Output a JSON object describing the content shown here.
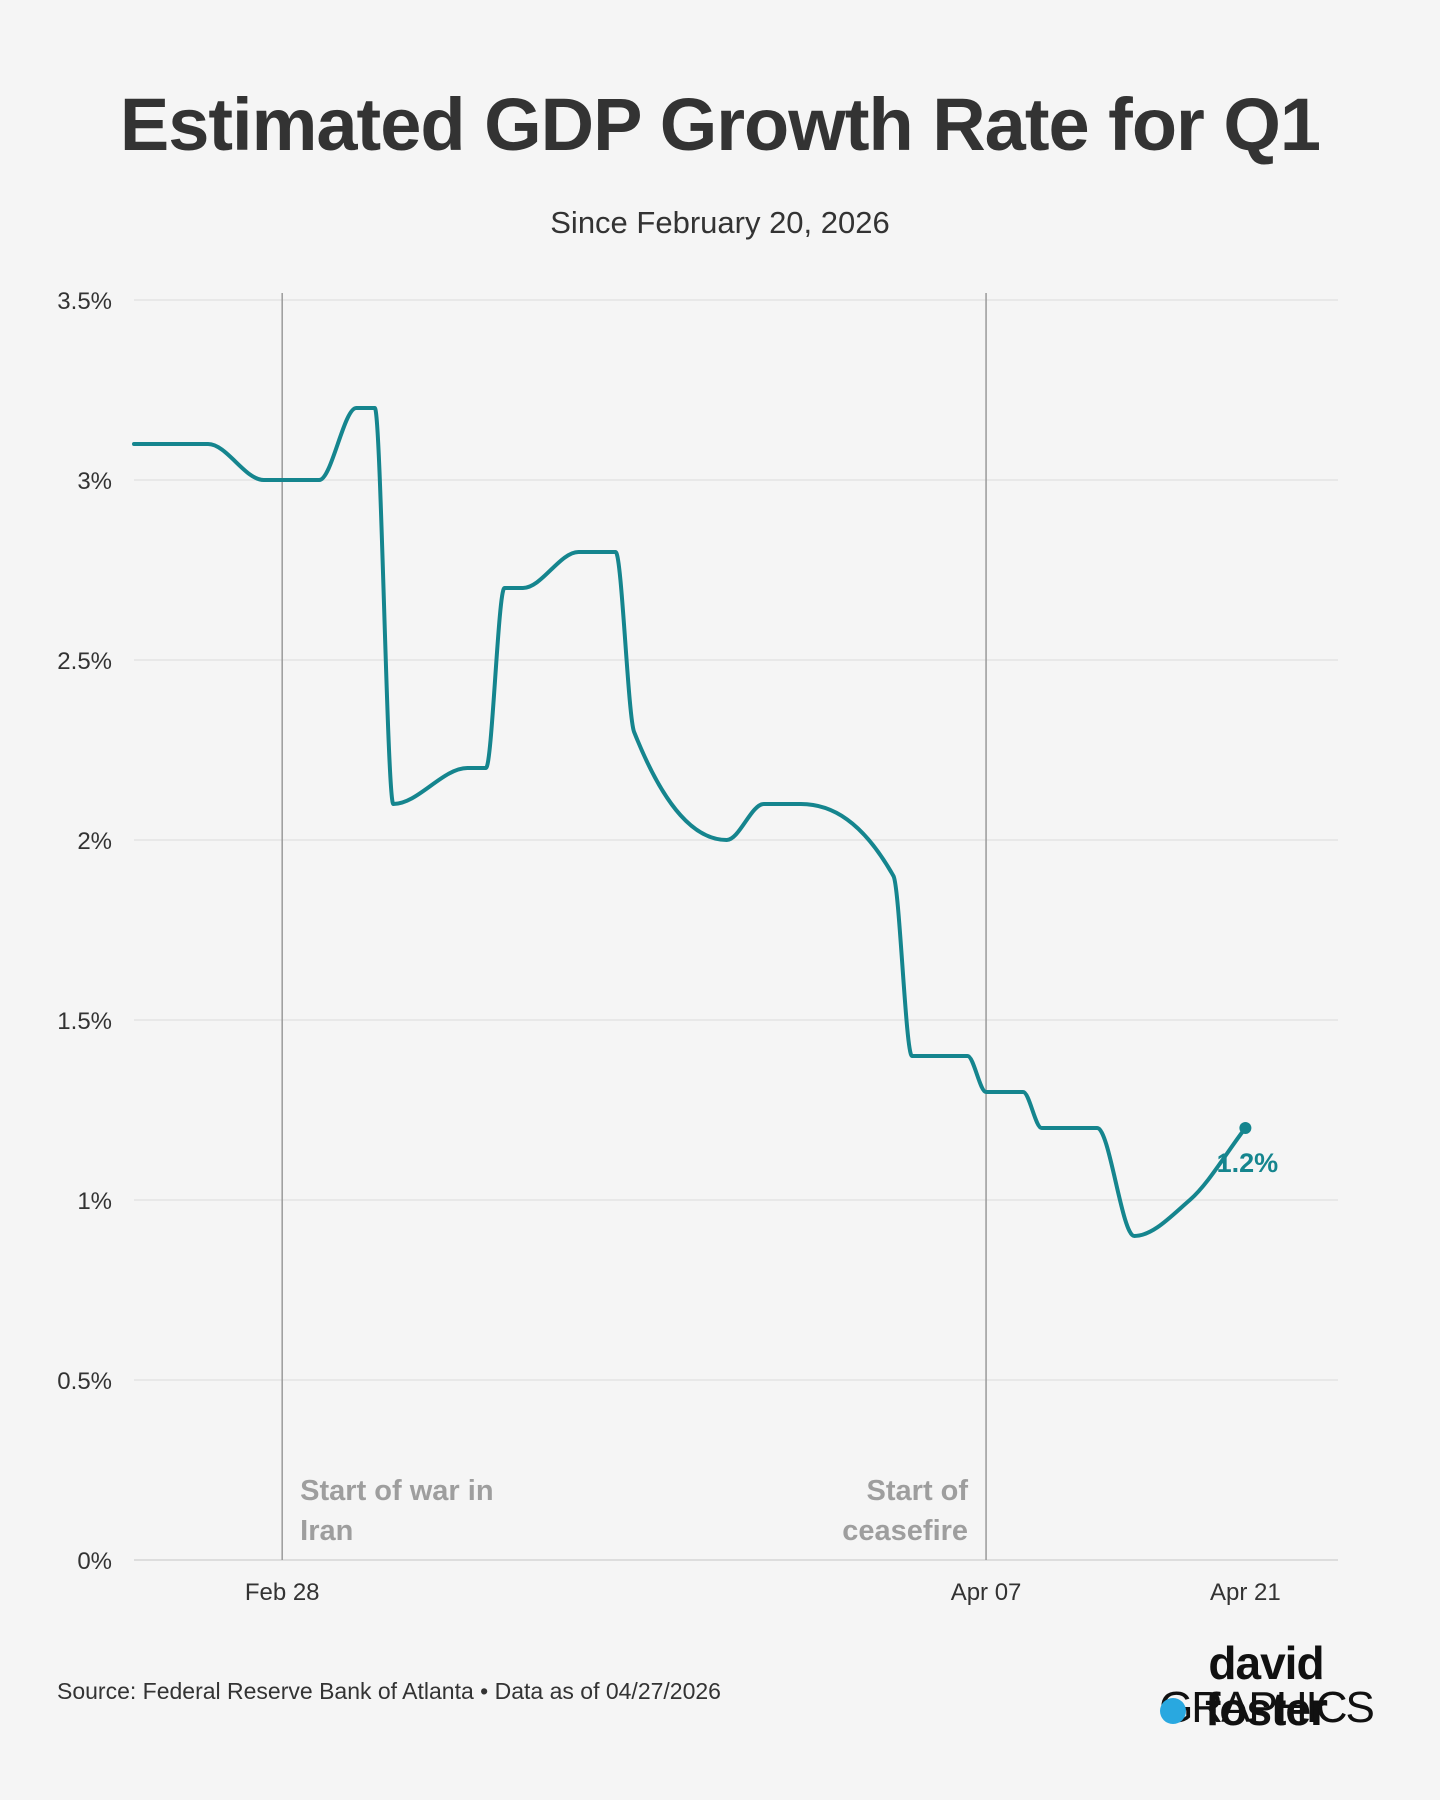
{
  "header": {
    "title": "Estimated GDP Growth Rate for Q1",
    "subtitle": "Since February 20, 2026"
  },
  "footer": {
    "source": "Source: Federal Reserve Bank of Atlanta • Data as of 04/27/2026"
  },
  "brand": {
    "line1": "david foster",
    "line2": "GRAPHICS",
    "accent_color": "#29a8e0"
  },
  "chart_data": {
    "type": "line",
    "title": "Estimated GDP Growth Rate for Q1",
    "subtitle": "Since February 20, 2026",
    "xlabel": "",
    "ylabel": "",
    "ylim": [
      0,
      3.5
    ],
    "xlim": [
      "2026-02-20",
      "2026-04-26"
    ],
    "y_ticks": [
      0,
      0.5,
      1,
      1.5,
      2,
      2.5,
      3,
      3.5
    ],
    "y_tick_labels": [
      "0%",
      "0.5%",
      "1%",
      "1.5%",
      "2%",
      "2.5%",
      "3%",
      "3.5%"
    ],
    "x_ticks": [
      "2026-02-28",
      "2026-04-07",
      "2026-04-21"
    ],
    "x_tick_labels": [
      "Feb 28",
      "Apr 07",
      "Apr 21"
    ],
    "grid": "horizontal",
    "line_color": "#15858e",
    "series": [
      {
        "points": [
          {
            "x": "2026-02-20",
            "y": 3.1
          },
          {
            "x": "2026-02-24",
            "y": 3.1
          },
          {
            "x": "2026-02-27",
            "y": 3.0
          },
          {
            "x": "2026-03-02",
            "y": 3.0
          },
          {
            "x": "2026-03-04",
            "y": 3.2
          },
          {
            "x": "2026-03-05",
            "y": 3.2
          },
          {
            "x": "2026-03-06",
            "y": 2.1
          },
          {
            "x": "2026-03-10",
            "y": 2.2
          },
          {
            "x": "2026-03-11",
            "y": 2.2
          },
          {
            "x": "2026-03-12",
            "y": 2.7
          },
          {
            "x": "2026-03-13",
            "y": 2.7
          },
          {
            "x": "2026-03-16",
            "y": 2.8
          },
          {
            "x": "2026-03-18",
            "y": 2.8
          },
          {
            "x": "2026-03-19",
            "y": 2.3
          },
          {
            "x": "2026-03-24",
            "y": 2.0
          },
          {
            "x": "2026-03-26",
            "y": 2.1
          },
          {
            "x": "2026-03-28",
            "y": 2.1
          },
          {
            "x": "2026-04-02",
            "y": 1.9
          },
          {
            "x": "2026-04-03",
            "y": 1.4
          },
          {
            "x": "2026-04-06",
            "y": 1.4
          },
          {
            "x": "2026-04-07",
            "y": 1.3
          },
          {
            "x": "2026-04-09",
            "y": 1.3
          },
          {
            "x": "2026-04-10",
            "y": 1.2
          },
          {
            "x": "2026-04-13",
            "y": 1.2
          },
          {
            "x": "2026-04-15",
            "y": 0.9
          },
          {
            "x": "2026-04-18",
            "y": 1.0
          },
          {
            "x": "2026-04-21",
            "y": 1.2
          }
        ]
      }
    ],
    "annotations": [
      {
        "x": "2026-02-28",
        "text_lines": [
          "Start of war in",
          "Iran"
        ],
        "align": "left"
      },
      {
        "x": "2026-04-07",
        "text_lines": [
          "Start of",
          "ceasefire"
        ],
        "align": "right"
      }
    ],
    "end_label": "1.2%"
  }
}
